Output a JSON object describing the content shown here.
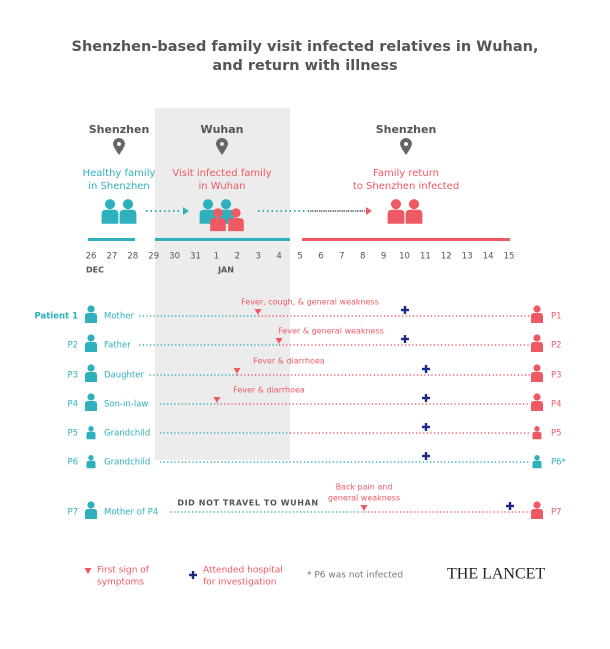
{
  "title": [
    "Shenzhen-based family visit infected relatives in Wuhan,",
    "and return with illness"
  ],
  "locations": [
    {
      "name": "Shenzhen",
      "caption": [
        "Healthy family",
        "in Shenzhen"
      ]
    },
    {
      "name": "Wuhan",
      "caption": [
        "Visit infected family",
        "in Wuhan"
      ]
    },
    {
      "name": "Shenzhen",
      "caption": [
        "Family return",
        "to Shenzhen infected"
      ]
    }
  ],
  "timeline": {
    "days": [
      "26",
      "27",
      "28",
      "29",
      "30",
      "31",
      "1",
      "2",
      "3",
      "4",
      "5",
      "6",
      "7",
      "8",
      "9",
      "10",
      "11",
      "12",
      "13",
      "14",
      "15"
    ],
    "months": [
      "DEC",
      "JAN"
    ]
  },
  "patients": [
    {
      "id": "Patient 1",
      "relation": "Mother",
      "symptom": [
        "Fever, cough, & general weakness"
      ],
      "end_label": "P1"
    },
    {
      "id": "P2",
      "relation": "Father",
      "symptom": [
        "Fever & general weakness"
      ],
      "end_label": "P2"
    },
    {
      "id": "P3",
      "relation": "Daughter",
      "symptom": [
        "Fever & diarrhoea"
      ],
      "end_label": "P3"
    },
    {
      "id": "P4",
      "relation": "Son-in-law",
      "symptom": [
        "Fever & diarrhoea"
      ],
      "end_label": "P4"
    },
    {
      "id": "P5",
      "relation": "Grandchild",
      "symptom": [],
      "end_label": "P5"
    },
    {
      "id": "P6",
      "relation": "Grandchild",
      "symptom": [],
      "end_label": "P6*"
    },
    {
      "id": "P7",
      "relation": "Mother of P4",
      "symptom": [
        "Back pain and",
        "general weakness"
      ],
      "end_label": "P7"
    }
  ],
  "note": "DID NOT TRAVEL TO WUHAN",
  "legend": {
    "symptom": [
      "First sign of",
      "symptoms"
    ],
    "hospital": [
      "Attended hospital",
      "for investigation"
    ],
    "footnote": "* P6 was not infected"
  },
  "brand": "THE LANCET"
}
